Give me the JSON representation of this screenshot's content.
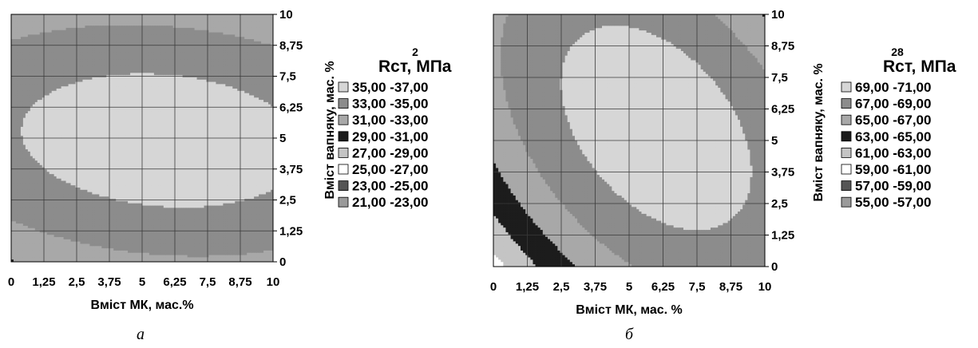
{
  "chart_data": [
    {
      "type": "contour",
      "panel_label": "а",
      "xlabel": "Вміст МК, мас.%",
      "ylabel": "Вміст вапняку, мас. %",
      "x_ticks": [
        "0",
        "1,25",
        "2,5",
        "3,75",
        "5",
        "6,25",
        "7,5",
        "8,75",
        "10"
      ],
      "y_ticks": [
        "0",
        "1,25",
        "2,5",
        "3,75",
        "5",
        "6,25",
        "7,5",
        "8,75",
        "10"
      ],
      "xlim": [
        0,
        10
      ],
      "ylim": [
        0,
        10
      ],
      "grid": true,
      "legend_title": "Rст, МПа",
      "legend_superscript": "2",
      "legend_position": "right",
      "legend": [
        {
          "label": "35,00 -37,00",
          "color": "#d6d6d6"
        },
        {
          "label": "33,00 -35,00",
          "color": "#8c8c8c"
        },
        {
          "label": "31,00 -33,00",
          "color": "#a8a8a8"
        },
        {
          "label": "29,00 -31,00",
          "color": "#1c1c1c"
        },
        {
          "label": "27,00 -29,00",
          "color": "#c4c4c4"
        },
        {
          "label": "25,00 -27,00",
          "color": "#ffffff"
        },
        {
          "label": "23,00 -25,00",
          "color": "#555555"
        },
        {
          "label": "21,00 -23,00",
          "color": "#9a9a9a"
        }
      ],
      "surface": {
        "cx": 5.8,
        "cy": 4.9,
        "a": 0.035,
        "b": 0.14,
        "c": 0.02,
        "max": 36.0
      }
    },
    {
      "type": "contour",
      "panel_label": "б",
      "xlabel": "Вміст МК, мас. %",
      "ylabel": "Вміст вапняку, мас. %",
      "x_ticks": [
        "0",
        "1,25",
        "2,5",
        "3,75",
        "5",
        "6,25",
        "7,5",
        "8,75",
        "10"
      ],
      "y_ticks": [
        "0",
        "1,25",
        "2,5",
        "3,75",
        "5",
        "6,25",
        "7,5",
        "8,75",
        "10"
      ],
      "xlim": [
        0,
        10
      ],
      "ylim": [
        0,
        10
      ],
      "grid": true,
      "legend_title": "Rст, МПа",
      "legend_superscript": "28",
      "legend_position": "right",
      "legend": [
        {
          "label": "69,00 -71,00",
          "color": "#d6d6d6"
        },
        {
          "label": "67,00 -69,00",
          "color": "#8c8c8c"
        },
        {
          "label": "65,00 -67,00",
          "color": "#a8a8a8"
        },
        {
          "label": "63,00 -65,00",
          "color": "#1c1c1c"
        },
        {
          "label": "61,00 -63,00",
          "color": "#c4c4c4"
        },
        {
          "label": "59,00 -61,00",
          "color": "#ffffff"
        },
        {
          "label": "57,00 -59,00",
          "color": "#555555"
        },
        {
          "label": "55,00 -57,00",
          "color": "#9a9a9a"
        }
      ],
      "surface": {
        "cx": 6.0,
        "cy": 5.5,
        "a": 0.12,
        "b": 0.09,
        "c": 0.09,
        "max": 70.2
      }
    }
  ]
}
